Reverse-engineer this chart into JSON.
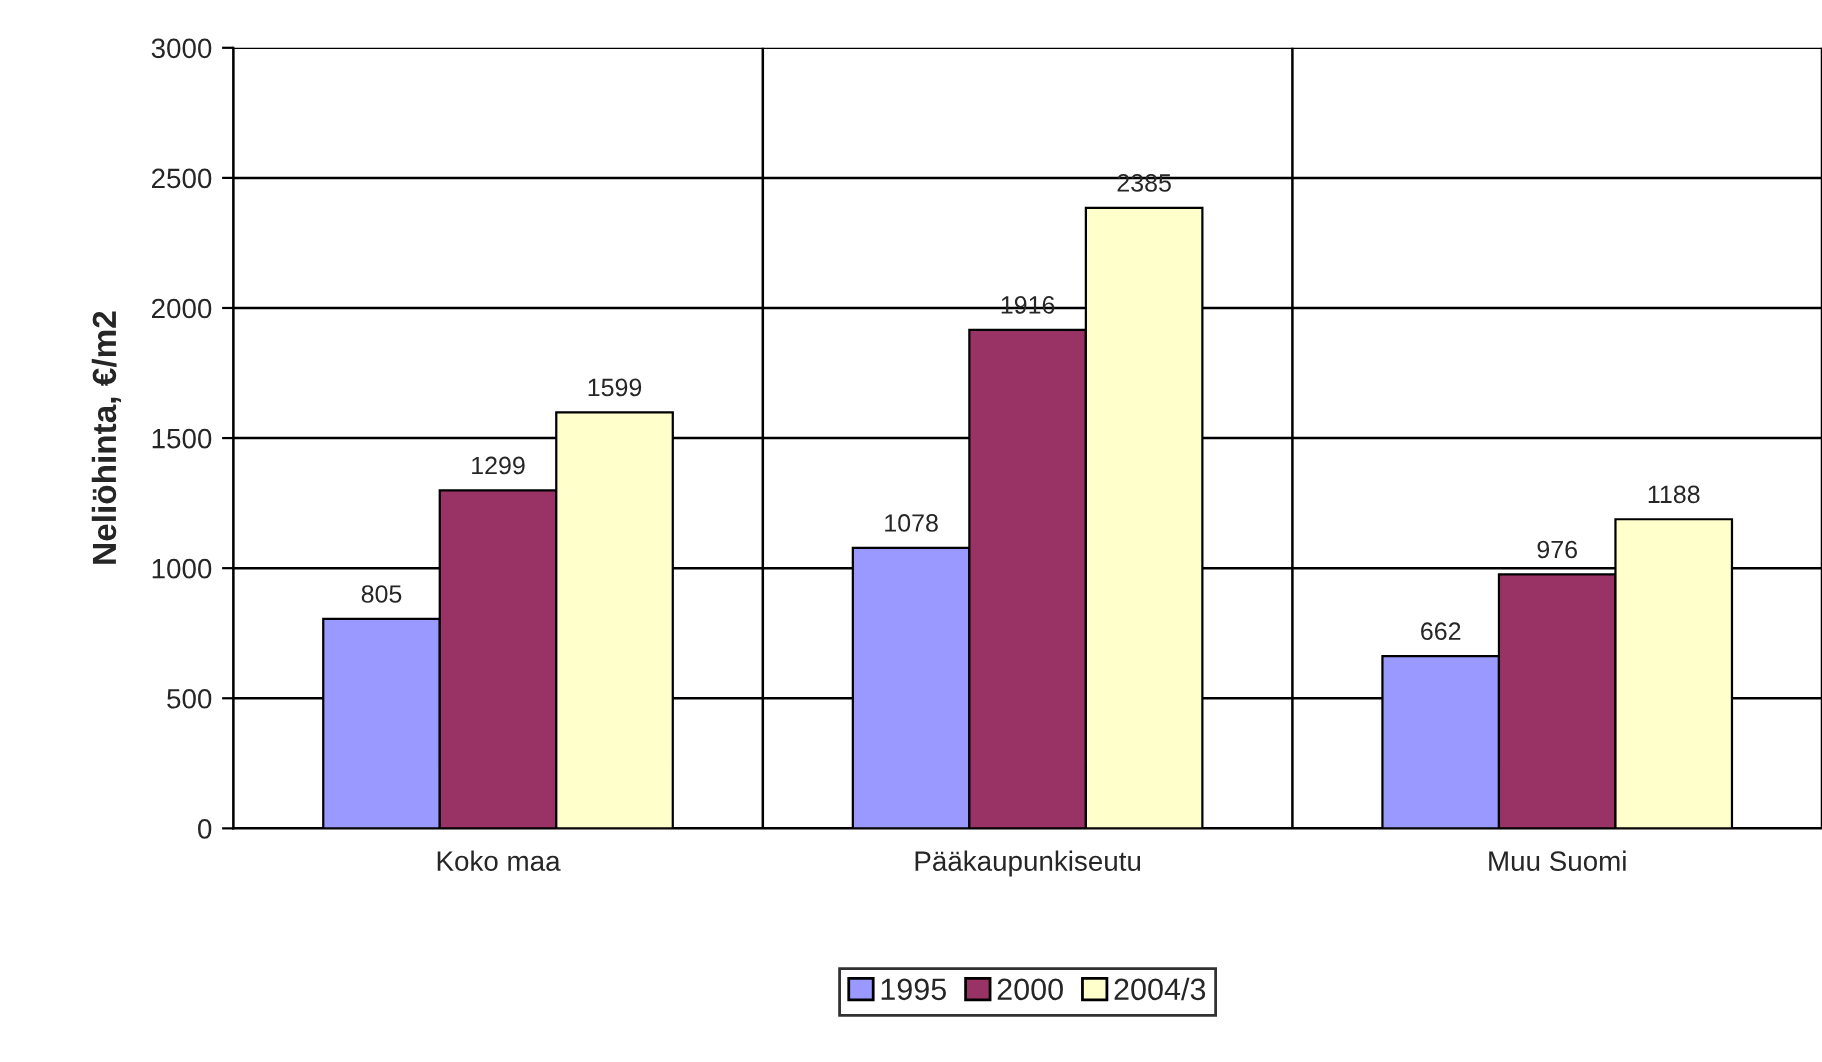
{
  "chart_data": {
    "type": "bar",
    "ylabel": "Neliöhinta, €/m2",
    "categories": [
      "Koko maa",
      "Pääkaupunkiseutu",
      "Muu Suomi"
    ],
    "series": [
      {
        "name": "1995",
        "color": "#9999ff",
        "values": [
          805,
          1078,
          662
        ]
      },
      {
        "name": "2000",
        "color": "#993366",
        "values": [
          1299,
          1916,
          976
        ]
      },
      {
        "name": "2004/3",
        "color": "#ffffcc",
        "values": [
          1599,
          2385,
          1188
        ]
      }
    ],
    "ylim": [
      0,
      3000
    ],
    "yticks": [
      0,
      500,
      1000,
      1500,
      2000,
      2500,
      3000
    ],
    "grid": true,
    "legend": "bottom",
    "data_labels": true
  }
}
